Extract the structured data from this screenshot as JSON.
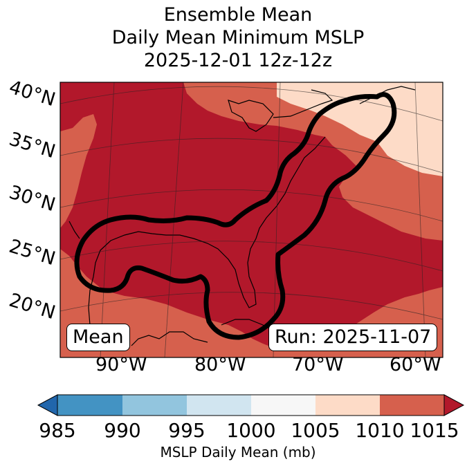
{
  "title_lines": [
    "Ensemble Mean",
    "Daily Mean Minimum MSLP",
    "2025-12-01 12z-12z"
  ],
  "lat_labels": [
    "40°N",
    "35°N",
    "30°N",
    "25°N",
    "20°N"
  ],
  "lon_labels": [
    "90°W",
    "80°W",
    "70°W",
    "60°W"
  ],
  "mean_box": "Mean",
  "run_box": "Run: 2025-11-07",
  "colorbar": {
    "label": "MSLP Daily Mean (mb)",
    "ticks": [
      "985",
      "990",
      "995",
      "1000",
      "1005",
      "1010",
      "1015"
    ],
    "colors": [
      "#2166ac",
      "#4393c3",
      "#92c5de",
      "#d1e5f0",
      "#f7f7f7",
      "#fddbc7",
      "#d6604d",
      "#b2182b"
    ]
  },
  "field_colors": {
    "over_1015": "#b2182b",
    "band_1010_1015": "#d6604d",
    "band_1005_1010": "#fddbc7"
  },
  "contour_color": "#000000"
}
